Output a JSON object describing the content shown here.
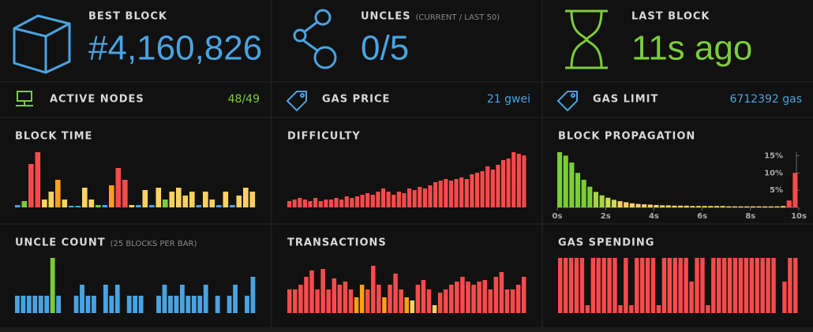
{
  "stats": [
    {
      "label": "BEST BLOCK",
      "value": "#4,160,826",
      "color": "#4aa3df"
    },
    {
      "label": "UNCLES",
      "subtitle": "(CURRENT / LAST 50)",
      "value": "0/5",
      "color": "#4aa3df"
    },
    {
      "label": "LAST BLOCK",
      "value": "11s ago",
      "color": "#7bcc3a"
    }
  ],
  "small_stats": [
    {
      "label": "ACTIVE NODES",
      "value": "48/49",
      "color": "#7bcc3a"
    },
    {
      "label": "GAS PRICE",
      "value": "21 gwei",
      "color": "#4aa3df"
    },
    {
      "label": "GAS LIMIT",
      "value": "6712392 gas",
      "color": "#4aa3df"
    }
  ],
  "charts": [
    {
      "title": "BLOCK TIME",
      "type": "bar",
      "values": [
        3,
        8,
        55,
        70,
        10,
        20,
        35,
        10,
        2,
        2,
        25,
        10,
        3,
        3,
        28,
        50,
        35,
        3,
        3,
        22,
        3,
        25,
        10,
        20,
        25,
        15,
        20,
        3,
        20,
        10,
        3,
        20,
        3,
        15,
        25,
        20
      ],
      "colors": [
        "#4aa3df",
        "#7bcc3a",
        "#f74b4b",
        "#f74b4b",
        "#ffd162",
        "#ffd162",
        "#ff9f1a",
        "#ffd162",
        "#4aa3df",
        "#4aa3df",
        "#ffd162",
        "#ffd162",
        "#7bcc3a",
        "#4aa3df",
        "#ff9f1a",
        "#f74b4b",
        "#f74b4b",
        "#ffd162",
        "#4aa3df",
        "#ffd162",
        "#4aa3df",
        "#ffd162",
        "#7bcc3a",
        "#ffd162",
        "#ffd162",
        "#ffd162",
        "#ffd162",
        "#4aa3df",
        "#ffd162",
        "#ffd162",
        "#4aa3df",
        "#ffd162",
        "#4aa3df",
        "#ffd162",
        "#ffd162",
        "#ffd162"
      ]
    },
    {
      "title": "DIFFICULTY",
      "type": "bar",
      "color": "#f74b4b",
      "values": [
        8,
        10,
        12,
        10,
        8,
        12,
        8,
        10,
        10,
        12,
        10,
        14,
        12,
        14,
        16,
        18,
        16,
        20,
        24,
        20,
        16,
        20,
        18,
        24,
        22,
        26,
        24,
        28,
        32,
        34,
        36,
        34,
        36,
        38,
        36,
        42,
        44,
        46,
        52,
        48,
        54,
        60,
        62,
        70,
        68,
        66
      ]
    },
    {
      "title": "BLOCK PROPAGATION",
      "type": "histogram",
      "bins": [
        0,
        0.25,
        0.5,
        0.75,
        1,
        1.25,
        1.5,
        1.75,
        2,
        2.25,
        2.5,
        2.75,
        3,
        3.25,
        3.5,
        3.75,
        4,
        4.25,
        4.5,
        4.75,
        5,
        5.25,
        5.5,
        5.75,
        6,
        6.25,
        6.5,
        6.75,
        7,
        7.25,
        7.5,
        7.75,
        8,
        8.25,
        8.5,
        8.75,
        9,
        9.25,
        9.5,
        9.75,
        10
      ],
      "values": [
        16,
        15,
        13,
        10,
        8,
        6,
        4.5,
        3.5,
        2.8,
        2.2,
        1.8,
        1.5,
        1.2,
        1,
        0.9,
        0.8,
        0.7,
        0.6,
        0.6,
        0.5,
        0.5,
        0.5,
        0.4,
        0.4,
        0.4,
        0.4,
        0.4,
        0.4,
        0.3,
        0.3,
        0.3,
        0.3,
        0.3,
        0.3,
        0.3,
        0.3,
        0.3,
        0.4,
        2,
        10
      ],
      "colors": [
        "#7bcc3a",
        "#7bcc3a",
        "#7bcc3a",
        "#7bcc3a",
        "#7bcc3a",
        "#7bcc3a",
        "#a8d44a",
        "#a8d44a",
        "#c9dc55",
        "#c9dc55",
        "#ffd162",
        "#ffd162",
        "#ffd162",
        "#ffd162",
        "#ffd162",
        "#ffd162",
        "#ffd162",
        "#ffd162",
        "#ffd162",
        "#ffd162",
        "#ffd162",
        "#ffd162",
        "#ffd162",
        "#ffd162",
        "#ffd162",
        "#ffd162",
        "#ffd162",
        "#ffd162",
        "#ffd162",
        "#ffd162",
        "#ffd162",
        "#ffd162",
        "#ffd162",
        "#ffd162",
        "#ffd162",
        "#ffd162",
        "#ffd162",
        "#ffd162",
        "#f74b4b",
        "#f74b4b"
      ],
      "xlim": [
        0,
        10
      ],
      "ylim": [
        0,
        16
      ],
      "xticks": [
        {
          "value": 0,
          "label": "0s"
        },
        {
          "value": 2,
          "label": "2s"
        },
        {
          "value": 4,
          "label": "4s"
        },
        {
          "value": 6,
          "label": "6s"
        },
        {
          "value": 8,
          "label": "8s"
        },
        {
          "value": 10,
          "label": "10s"
        }
      ],
      "yticks": [
        {
          "value": 5,
          "label": "5%"
        },
        {
          "value": 10,
          "label": "10%"
        },
        {
          "value": 15,
          "label": "15%"
        }
      ]
    },
    {
      "title": "UNCLE COUNT",
      "subtitle": "(25 BLOCKS PER BAR)",
      "type": "bar",
      "color": "#4aa3df",
      "values": [
        22,
        22,
        22,
        22,
        22,
        22,
        70,
        22,
        0,
        0,
        22,
        36,
        22,
        22,
        0,
        36,
        22,
        36,
        0,
        22,
        22,
        22,
        0,
        0,
        22,
        36,
        22,
        22,
        36,
        22,
        22,
        22,
        36,
        0,
        22,
        0,
        22,
        36,
        0,
        22,
        46
      ],
      "colors": [
        null,
        null,
        null,
        null,
        null,
        null,
        "#7bcc3a"
      ]
    },
    {
      "title": "TRANSACTIONS",
      "type": "bar",
      "color": "#f74b4b",
      "values": [
        30,
        30,
        36,
        46,
        54,
        30,
        56,
        30,
        44,
        36,
        40,
        30,
        20,
        36,
        30,
        60,
        36,
        20,
        36,
        50,
        30,
        20,
        16,
        36,
        42,
        30,
        10,
        26,
        30,
        36,
        40,
        46,
        40,
        36,
        40,
        42,
        30,
        46,
        52,
        30,
        30,
        36,
        46
      ],
      "colors": [
        null,
        null,
        null,
        null,
        null,
        null,
        null,
        null,
        null,
        null,
        null,
        null,
        "#ff9f1a",
        "#ff9f1a",
        null,
        null,
        null,
        "#ff9f1a",
        null,
        null,
        null,
        "#ff9f1a",
        "#ffd162",
        null,
        null,
        null,
        "#ffd162"
      ]
    },
    {
      "title": "GAS SPENDING",
      "type": "bar",
      "color": "#f74b4b",
      "values": [
        70,
        70,
        70,
        70,
        70,
        10,
        70,
        70,
        70,
        70,
        70,
        10,
        70,
        10,
        70,
        70,
        70,
        70,
        10,
        70,
        70,
        70,
        70,
        70,
        40,
        70,
        70,
        10,
        70,
        70,
        70,
        70,
        70,
        70,
        70,
        70,
        70,
        70,
        70,
        70,
        0,
        40,
        70,
        70
      ]
    }
  ]
}
